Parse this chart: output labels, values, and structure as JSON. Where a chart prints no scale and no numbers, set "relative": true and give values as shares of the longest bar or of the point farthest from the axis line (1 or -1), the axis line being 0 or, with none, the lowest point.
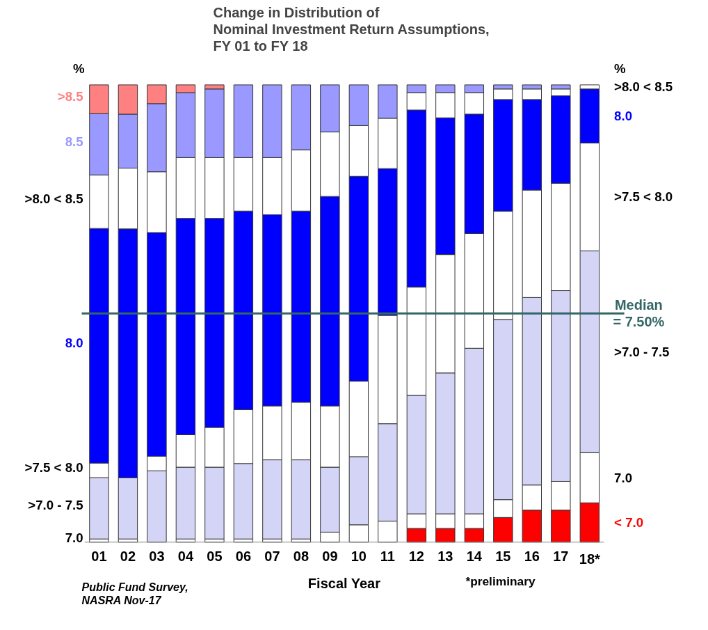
{
  "chart_data": {
    "type": "bar",
    "stacked": true,
    "relative": true,
    "title": "Change in Distribution of\nNominal Investment Return Assumptions,\nFY 01 to FY 18",
    "xlabel": "Fiscal Year",
    "ylabel": "%",
    "y2label": "%",
    "categories": [
      "01",
      "02",
      "03",
      "04",
      "05",
      "06",
      "07",
      "08",
      "09",
      "10",
      "11",
      "12",
      "13",
      "14",
      "15",
      "16",
      "17",
      "18*"
    ],
    "series": [
      {
        "name": "< 7.0",
        "color": "#ff0000",
        "values": [
          0,
          0,
          0,
          0,
          0,
          0,
          0,
          0,
          0,
          0,
          0,
          0.03,
          0.03,
          0.03,
          0.054,
          0.07,
          0.07,
          0.086
        ]
      },
      {
        "name": "7.0",
        "color": "#ffffff",
        "values": [
          0.007,
          0.007,
          0,
          0.007,
          0.007,
          0.007,
          0.007,
          0.007,
          0.022,
          0.038,
          0.046,
          0.032,
          0.032,
          0.032,
          0.039,
          0.055,
          0.063,
          0.11
        ]
      },
      {
        "name": ">7.0 - 7.5",
        "color": "#d4d4f7",
        "values": [
          0.134,
          0.134,
          0.156,
          0.157,
          0.157,
          0.165,
          0.173,
          0.173,
          0.142,
          0.149,
          0.213,
          0.259,
          0.308,
          0.362,
          0.394,
          0.41,
          0.417,
          0.441
        ]
      },
      {
        "name": ">7.5 < 8.0",
        "color": "#ffffff",
        "values": [
          0.032,
          0,
          0.032,
          0.071,
          0.087,
          0.118,
          0.118,
          0.126,
          0.134,
          0.165,
          0.237,
          0.237,
          0.259,
          0.251,
          0.237,
          0.235,
          0.235,
          0.236
        ]
      },
      {
        "name": "8.0",
        "color": "#0000ff",
        "values": [
          0.513,
          0.544,
          0.489,
          0.473,
          0.457,
          0.434,
          0.418,
          0.418,
          0.458,
          0.448,
          0.321,
          0.387,
          0.299,
          0.261,
          0.244,
          0.198,
          0.191,
          0.118
        ]
      },
      {
        "name": ">8.0 < 8.5",
        "color": "#ffffff",
        "values": [
          0.117,
          0.133,
          0.133,
          0.133,
          0.133,
          0.117,
          0.125,
          0.134,
          0.141,
          0.111,
          0.11,
          0.038,
          0.055,
          0.047,
          0.023,
          0.023,
          0.015,
          0.009
        ]
      },
      {
        "name": "8.5",
        "color": "#9999ff",
        "values": [
          0.134,
          0.118,
          0.149,
          0.142,
          0.15,
          0.159,
          0.159,
          0.142,
          0.103,
          0.089,
          0.073,
          0.017,
          0.017,
          0.017,
          0.009,
          0.009,
          0.009,
          0
        ]
      },
      {
        "name": ">8.5",
        "color": "#ff8080",
        "values": [
          0.063,
          0.064,
          0.041,
          0.017,
          0.009,
          0,
          0,
          0,
          0,
          0,
          0,
          0,
          0,
          0,
          0,
          0,
          0,
          0
        ]
      }
    ],
    "ref_lines": [
      {
        "axis": "y",
        "value": 0.5,
        "color": "#336666"
      }
    ],
    "annotations": [
      "Public Fund Survey,\nNASRA Nov-17",
      "*preliminary",
      "Median\n= 7.50%"
    ]
  }
}
